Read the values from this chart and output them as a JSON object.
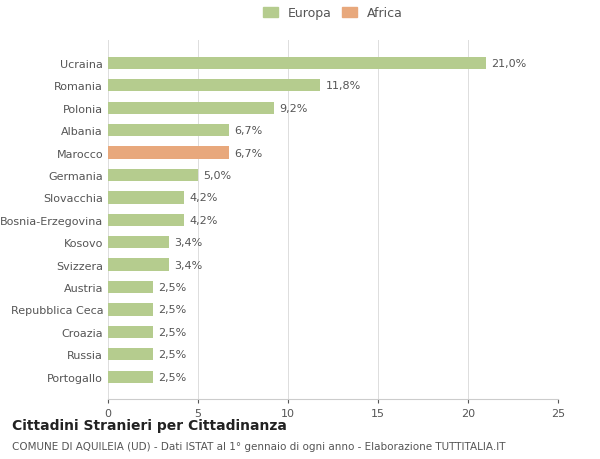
{
  "categories": [
    "Portogallo",
    "Russia",
    "Croazia",
    "Repubblica Ceca",
    "Austria",
    "Svizzera",
    "Kosovo",
    "Bosnia-Erzegovina",
    "Slovacchia",
    "Germania",
    "Marocco",
    "Albania",
    "Polonia",
    "Romania",
    "Ucraina"
  ],
  "values": [
    2.5,
    2.5,
    2.5,
    2.5,
    2.5,
    3.4,
    3.4,
    4.2,
    4.2,
    5.0,
    6.7,
    6.7,
    9.2,
    11.8,
    21.0
  ],
  "labels": [
    "2,5%",
    "2,5%",
    "2,5%",
    "2,5%",
    "2,5%",
    "3,4%",
    "3,4%",
    "4,2%",
    "4,2%",
    "5,0%",
    "6,7%",
    "6,7%",
    "9,2%",
    "11,8%",
    "21,0%"
  ],
  "colors": [
    "#b5cc8e",
    "#b5cc8e",
    "#b5cc8e",
    "#b5cc8e",
    "#b5cc8e",
    "#b5cc8e",
    "#b5cc8e",
    "#b5cc8e",
    "#b5cc8e",
    "#b5cc8e",
    "#e8a87c",
    "#b5cc8e",
    "#b5cc8e",
    "#b5cc8e",
    "#b5cc8e"
  ],
  "europa_color": "#b5cc8e",
  "africa_color": "#e8a87c",
  "xlim": [
    0,
    25
  ],
  "xticks": [
    0,
    5,
    10,
    15,
    20,
    25
  ],
  "title": "Cittadini Stranieri per Cittadinanza",
  "subtitle": "COMUNE DI AQUILEIA (UD) - Dati ISTAT al 1° gennaio di ogni anno - Elaborazione TUTTITALIA.IT",
  "background_color": "#ffffff",
  "bar_height": 0.55,
  "label_fontsize": 8,
  "tick_fontsize": 8,
  "title_fontsize": 10,
  "subtitle_fontsize": 7.5,
  "legend_fontsize": 9
}
